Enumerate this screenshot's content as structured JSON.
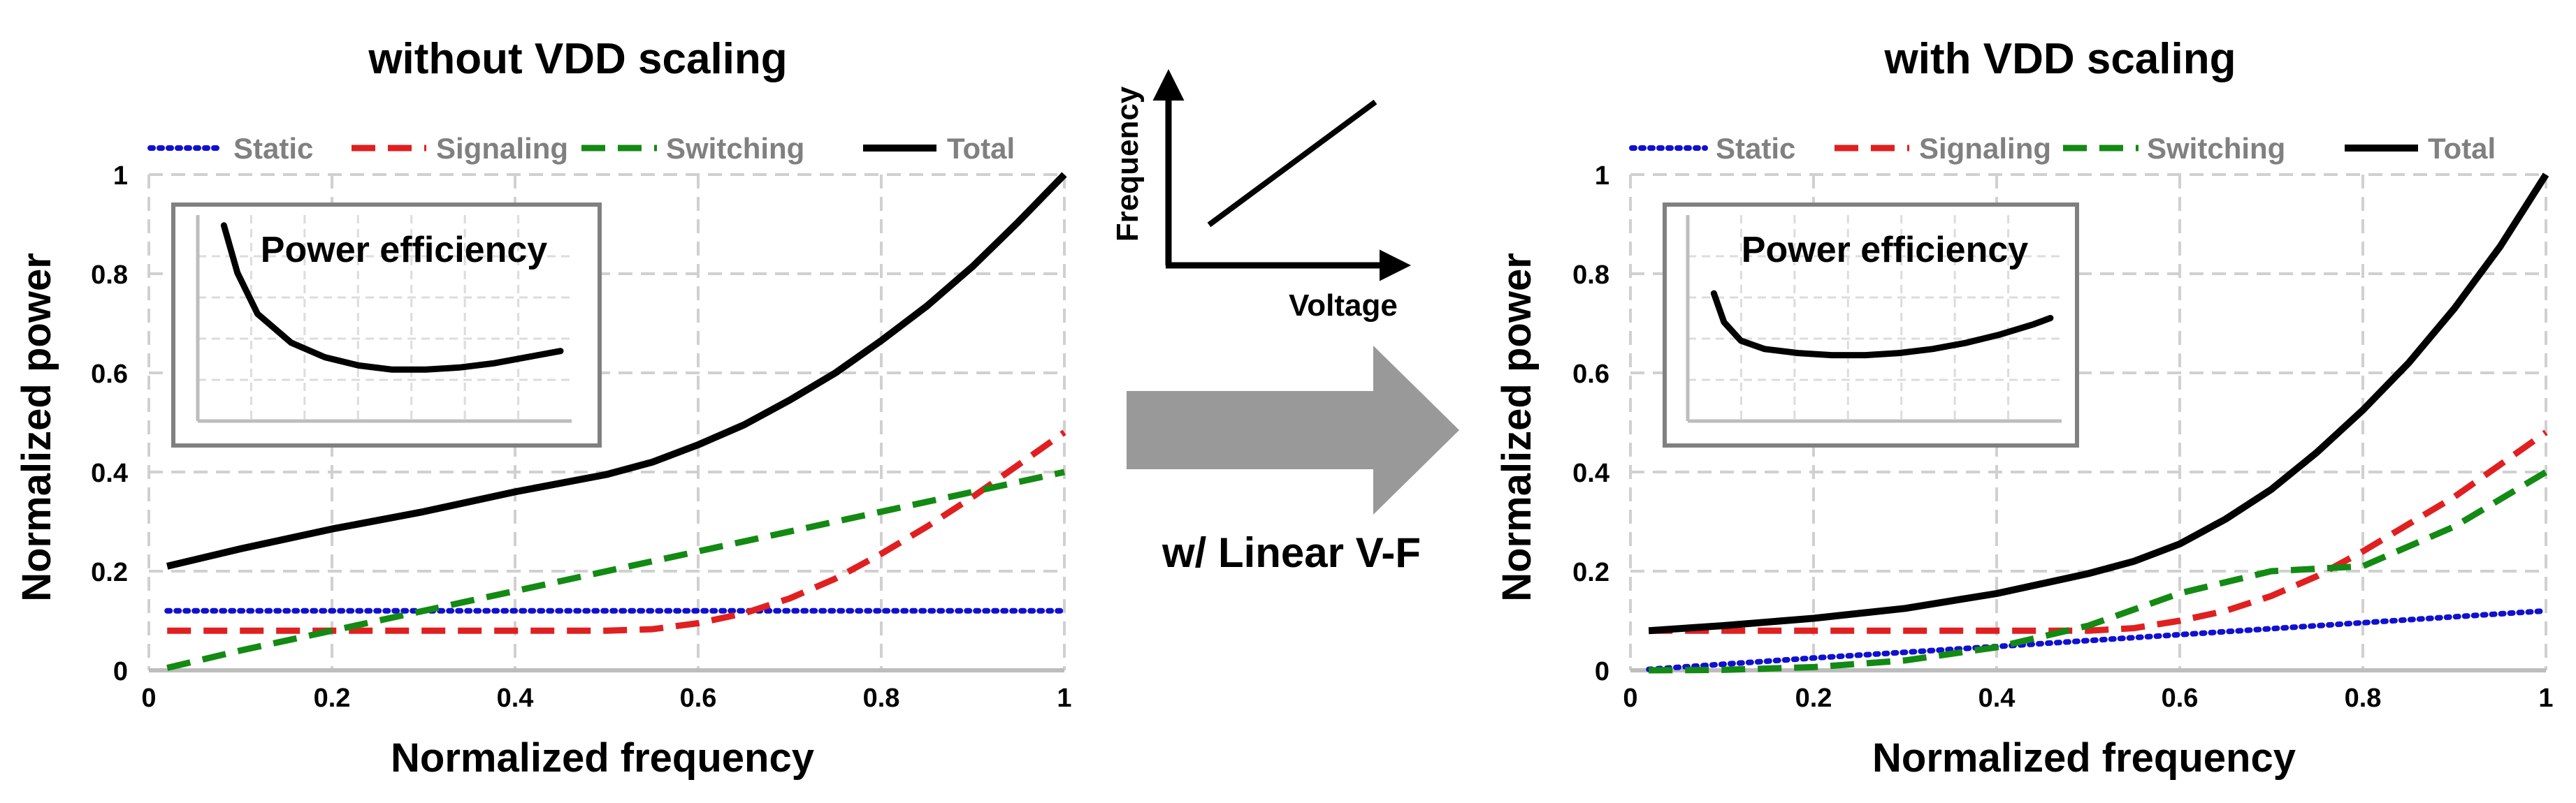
{
  "chart_data": [
    {
      "type": "line",
      "title": "without VDD scaling",
      "xlabel": "Normalized frequency",
      "ylabel": "Normalized power",
      "xlim": [
        0,
        1
      ],
      "ylim": [
        0,
        1
      ],
      "xticks": [
        "0",
        "0.2",
        "0.4",
        "0.6",
        "0.8",
        "1"
      ],
      "yticks": [
        "0",
        "0.2",
        "0.4",
        "0.6",
        "0.8",
        "1"
      ],
      "grid": true,
      "legend_position": "top",
      "series": [
        {
          "name": "Static",
          "style": "dotted",
          "color": "#1010d0",
          "x": [
            0.02,
            0.2,
            0.4,
            0.6,
            0.8,
            1.0
          ],
          "y": [
            0.12,
            0.12,
            0.12,
            0.12,
            0.12,
            0.12
          ]
        },
        {
          "name": "Signaling",
          "style": "dashed",
          "color": "#e02020",
          "x": [
            0.02,
            0.1,
            0.2,
            0.3,
            0.4,
            0.5,
            0.55,
            0.6,
            0.65,
            0.7,
            0.75,
            0.8,
            0.85,
            0.9,
            0.95,
            1.0
          ],
          "y": [
            0.08,
            0.08,
            0.08,
            0.08,
            0.08,
            0.08,
            0.083,
            0.095,
            0.115,
            0.145,
            0.185,
            0.235,
            0.29,
            0.35,
            0.415,
            0.48
          ]
        },
        {
          "name": "Switching",
          "style": "dashed",
          "color": "#138a13",
          "x": [
            0.02,
            0.1,
            0.2,
            0.3,
            0.4,
            0.5,
            0.6,
            0.7,
            0.8,
            0.9,
            1.0
          ],
          "y": [
            0.005,
            0.04,
            0.08,
            0.12,
            0.16,
            0.2,
            0.24,
            0.28,
            0.32,
            0.36,
            0.4
          ]
        },
        {
          "name": "Total",
          "style": "solid",
          "color": "#000000",
          "x": [
            0.02,
            0.1,
            0.2,
            0.3,
            0.4,
            0.5,
            0.55,
            0.6,
            0.65,
            0.7,
            0.75,
            0.8,
            0.85,
            0.9,
            0.95,
            1.0
          ],
          "y": [
            0.21,
            0.245,
            0.285,
            0.32,
            0.36,
            0.395,
            0.42,
            0.455,
            0.495,
            0.545,
            0.6,
            0.665,
            0.735,
            0.815,
            0.905,
            1.0
          ]
        }
      ],
      "inset": {
        "title": "Power efficiency",
        "x": [
          0.0,
          0.04,
          0.1,
          0.2,
          0.3,
          0.4,
          0.5,
          0.6,
          0.7,
          0.8,
          0.9,
          1.0
        ],
        "y": [
          0.95,
          0.72,
          0.52,
          0.38,
          0.31,
          0.27,
          0.25,
          0.25,
          0.26,
          0.28,
          0.31,
          0.34
        ]
      }
    },
    {
      "type": "line",
      "title": "with VDD scaling",
      "xlabel": "Normalized frequency",
      "ylabel": "Normalized power",
      "xlim": [
        0,
        1
      ],
      "ylim": [
        0,
        1
      ],
      "xticks": [
        "0",
        "0.2",
        "0.4",
        "0.6",
        "0.8",
        "1"
      ],
      "yticks": [
        "0",
        "0.2",
        "0.4",
        "0.6",
        "0.8",
        "1"
      ],
      "grid": true,
      "legend_position": "top",
      "series": [
        {
          "name": "Static",
          "style": "dotted",
          "color": "#1010d0",
          "x": [
            0.02,
            0.2,
            0.4,
            0.6,
            0.8,
            1.0
          ],
          "y": [
            0.002,
            0.025,
            0.048,
            0.072,
            0.096,
            0.12
          ]
        },
        {
          "name": "Signaling",
          "style": "dashed",
          "color": "#e02020",
          "x": [
            0.02,
            0.1,
            0.2,
            0.3,
            0.4,
            0.5,
            0.55,
            0.6,
            0.65,
            0.7,
            0.75,
            0.8,
            0.85,
            0.9,
            0.95,
            1.0
          ],
          "y": [
            0.08,
            0.08,
            0.08,
            0.08,
            0.08,
            0.08,
            0.085,
            0.1,
            0.12,
            0.15,
            0.19,
            0.24,
            0.295,
            0.35,
            0.415,
            0.48
          ]
        },
        {
          "name": "Switching",
          "style": "dashed",
          "color": "#138a13",
          "x": [
            0.02,
            0.1,
            0.2,
            0.3,
            0.4,
            0.5,
            0.6,
            0.7,
            0.8,
            0.9,
            1.0
          ],
          "y": [
            0.0,
            0.0008,
            0.0065,
            0.02,
            0.0465,
            0.09,
            0.1555,
            0.2,
            0.21,
            0.29,
            0.4
          ]
        },
        {
          "name": "Total",
          "style": "solid",
          "color": "#000000",
          "x": [
            0.02,
            0.1,
            0.2,
            0.3,
            0.4,
            0.5,
            0.55,
            0.6,
            0.65,
            0.7,
            0.75,
            0.8,
            0.85,
            0.9,
            0.95,
            1.0
          ],
          "y": [
            0.08,
            0.09,
            0.105,
            0.125,
            0.155,
            0.195,
            0.22,
            0.255,
            0.305,
            0.365,
            0.44,
            0.525,
            0.62,
            0.73,
            0.855,
            1.0
          ]
        }
      ],
      "inset": {
        "title": "Power efficiency",
        "x": [
          0.0,
          0.03,
          0.08,
          0.15,
          0.25,
          0.35,
          0.45,
          0.55,
          0.65,
          0.75,
          0.85,
          0.95,
          1.0
        ],
        "y": [
          0.62,
          0.48,
          0.39,
          0.35,
          0.33,
          0.32,
          0.32,
          0.33,
          0.35,
          0.38,
          0.42,
          0.47,
          0.5
        ]
      }
    }
  ],
  "vf_diagram": {
    "ylabel": "Frequency",
    "xlabel": "Voltage"
  },
  "transition_arrow": {
    "label": "w/ Linear V-F"
  }
}
